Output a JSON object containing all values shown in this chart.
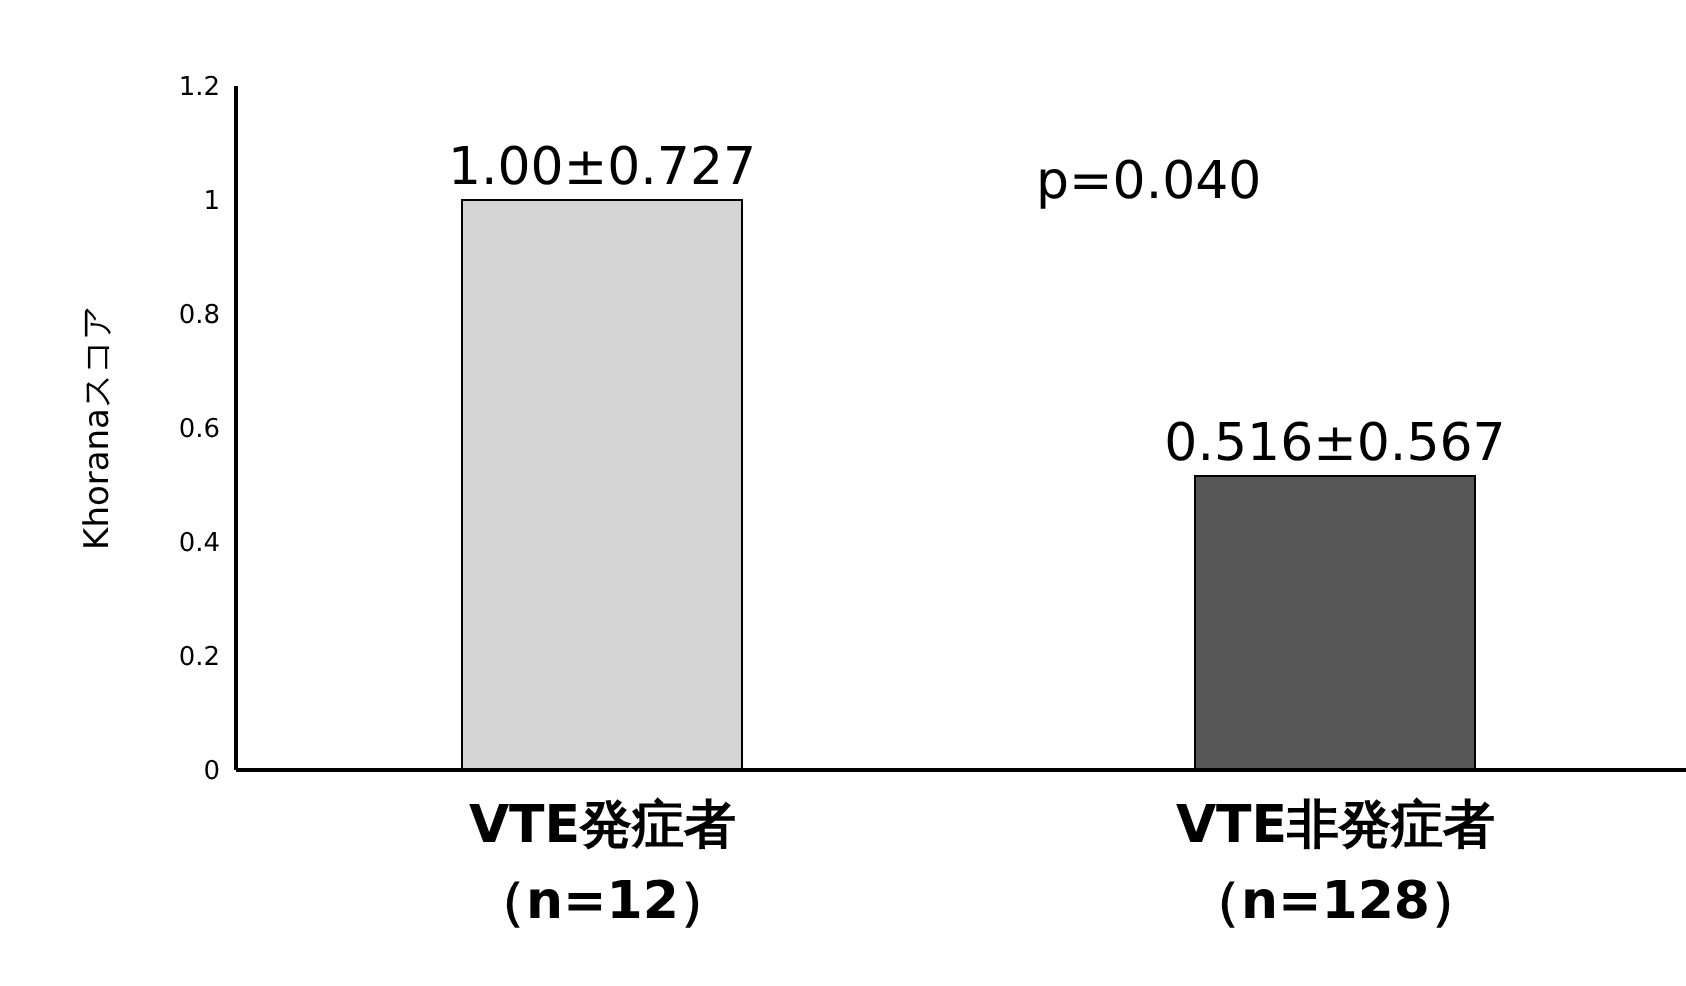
{
  "chart_data": {
    "type": "bar",
    "ylabel": "Khoranaスコア",
    "categories": [
      "VTE発症者（n=12）",
      "VTE非発症者（n=128）"
    ],
    "values": [
      1.0,
      0.516
    ],
    "colors": [
      "#d4d4d4",
      "#575757"
    ],
    "value_labels": [
      "1.00±0.727",
      "0.516±0.567"
    ],
    "annotations": [
      "p=0.040"
    ],
    "ylim": [
      0,
      1.2
    ],
    "yticks": [
      0,
      0.2,
      0.4,
      0.6,
      0.8,
      1,
      1.2
    ],
    "grid": false,
    "legend": false
  }
}
